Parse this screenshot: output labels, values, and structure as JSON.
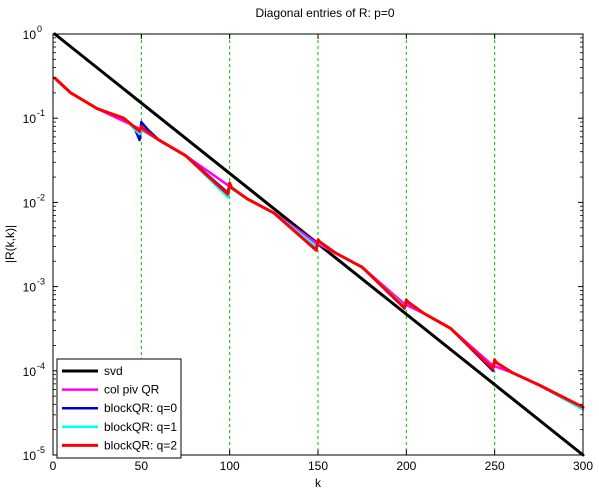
{
  "chart_data": {
    "type": "line",
    "title": "Diagonal entries of R: p=0",
    "xlabel": "k",
    "ylabel": "|R(k,k)|",
    "xlim": [
      0,
      300
    ],
    "ylim": [
      1e-05,
      1
    ],
    "yscale": "log",
    "x_ticks": [
      0,
      50,
      100,
      150,
      200,
      250,
      300
    ],
    "y_ticks": [
      {
        "value": 1,
        "mantissa": "10",
        "exp": "0"
      },
      {
        "value": 0.1,
        "mantissa": "10",
        "exp": "-1"
      },
      {
        "value": 0.01,
        "mantissa": "10",
        "exp": "-2"
      },
      {
        "value": 0.001,
        "mantissa": "10",
        "exp": "-3"
      },
      {
        "value": 0.0001,
        "mantissa": "10",
        "exp": "-4"
      },
      {
        "value": 1e-05,
        "mantissa": "10",
        "exp": "-5"
      }
    ],
    "vertical_gridlines_x": [
      50,
      100,
      150,
      200,
      250
    ],
    "gridline_color": "#00bb00",
    "legend_position": "bottom-left",
    "series": [
      {
        "name": "svd",
        "color": "#000000",
        "width": 3,
        "x": [
          1,
          300
        ],
        "y": [
          1.0,
          1e-05
        ]
      },
      {
        "name": "col piv QR",
        "color": "#ff00ff",
        "width": 2.5,
        "x": [
          1,
          10,
          25,
          49,
          60,
          75,
          99,
          110,
          125,
          149,
          160,
          175,
          199,
          210,
          225,
          249,
          260,
          275,
          300
        ],
        "y": [
          0.3,
          0.2,
          0.13,
          0.075,
          0.055,
          0.036,
          0.016,
          0.011,
          0.0075,
          0.0033,
          0.0025,
          0.0017,
          0.00062,
          0.00048,
          0.00032,
          0.000115,
          9.5e-05,
          6.8e-05,
          3.5e-05
        ]
      },
      {
        "name": "blockQR: q=0",
        "color": "#0000cc",
        "width": 2.5,
        "x": [
          1,
          10,
          25,
          40,
          46,
          49,
          50,
          51,
          54,
          60,
          75,
          99,
          100,
          101,
          110,
          125,
          149,
          150,
          151,
          160,
          175,
          199,
          200,
          201,
          210,
          225,
          249,
          250,
          251,
          260,
          275,
          300
        ],
        "y": [
          0.3,
          0.2,
          0.13,
          0.1,
          0.078,
          0.055,
          0.09,
          0.085,
          0.072,
          0.055,
          0.036,
          0.013,
          0.017,
          0.015,
          0.011,
          0.0075,
          0.0028,
          0.0036,
          0.0034,
          0.0025,
          0.0017,
          0.00055,
          0.0007,
          0.00066,
          0.00048,
          0.00032,
          0.0001,
          0.000135,
          0.000125,
          9.5e-05,
          6.8e-05,
          3.5e-05
        ]
      },
      {
        "name": "blockQR: q=1",
        "color": "#00ffff",
        "width": 2.5,
        "x": [
          1,
          10,
          25,
          40,
          49,
          50,
          60,
          75,
          99,
          100,
          110,
          125,
          149,
          150,
          160,
          175,
          199,
          200,
          210,
          225,
          249,
          250,
          260,
          275,
          300
        ],
        "y": [
          0.3,
          0.2,
          0.13,
          0.1,
          0.065,
          0.075,
          0.055,
          0.036,
          0.0115,
          0.015,
          0.011,
          0.0075,
          0.003,
          0.0034,
          0.0025,
          0.0017,
          0.00058,
          0.00066,
          0.00048,
          0.00032,
          0.000105,
          0.00013,
          9.5e-05,
          6.8e-05,
          3.5e-05
        ]
      },
      {
        "name": "blockQR: q=2",
        "color": "#ff0000",
        "width": 3,
        "x": [
          1,
          10,
          25,
          40,
          49,
          50,
          51,
          60,
          75,
          99,
          100,
          101,
          110,
          125,
          149,
          150,
          151,
          160,
          175,
          199,
          200,
          201,
          210,
          225,
          249,
          250,
          251,
          260,
          275,
          300
        ],
        "y": [
          0.3,
          0.2,
          0.13,
          0.1,
          0.07,
          0.08,
          0.075,
          0.055,
          0.036,
          0.0125,
          0.017,
          0.015,
          0.011,
          0.0075,
          0.0027,
          0.0036,
          0.0034,
          0.0025,
          0.0017,
          0.00056,
          0.00069,
          0.00065,
          0.00048,
          0.00032,
          0.000105,
          0.000135,
          0.000125,
          9.5e-05,
          6.8e-05,
          3.7e-05
        ]
      }
    ]
  }
}
